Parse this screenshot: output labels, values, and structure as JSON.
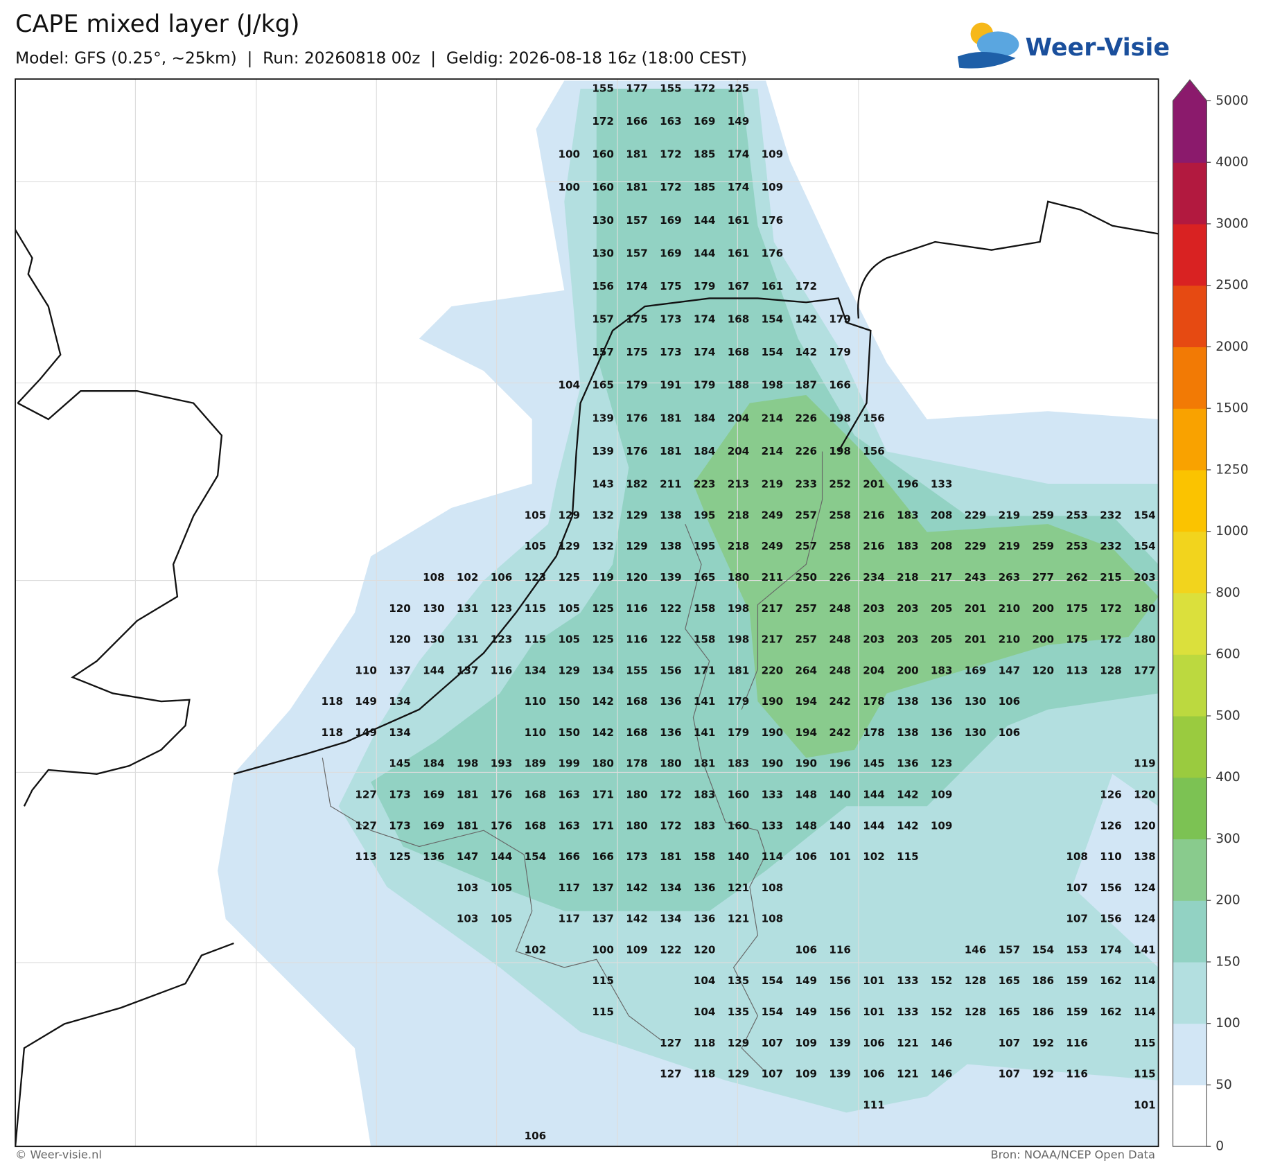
{
  "header": {
    "title": "CAPE mixed layer (J/kg)",
    "subtitle": "Model: GFS (0.25°, ~25km)  |  Run: 20260818 00z  |  Geldig: 2026-08-18 16z (18:00 CEST)",
    "logo": "Weer-Visie"
  },
  "map": {
    "rows": [
      [
        null,
        null,
        null,
        null,
        null,
        null,
        null,
        null,
        155,
        177,
        155,
        172,
        125,
        null,
        null,
        null,
        null,
        null,
        null,
        null,
        null,
        null,
        null,
        null,
        null
      ],
      [
        null,
        null,
        null,
        null,
        null,
        null,
        null,
        null,
        172,
        166,
        163,
        169,
        149,
        null,
        null,
        null,
        null,
        null,
        null,
        null,
        null,
        null,
        null,
        null,
        null
      ],
      [
        null,
        null,
        null,
        null,
        null,
        null,
        null,
        100,
        160,
        181,
        172,
        185,
        174,
        109,
        null,
        null,
        null,
        null,
        null,
        null,
        null,
        null,
        null,
        null,
        null
      ],
      [
        null,
        null,
        null,
        null,
        null,
        null,
        null,
        100,
        160,
        181,
        172,
        185,
        174,
        109,
        null,
        null,
        null,
        null,
        null,
        null,
        null,
        null,
        null,
        null,
        null
      ],
      [
        null,
        null,
        null,
        null,
        null,
        null,
        null,
        null,
        130,
        157,
        169,
        144,
        161,
        176,
        null,
        null,
        null,
        null,
        null,
        null,
        null,
        null,
        null,
        null,
        null
      ],
      [
        null,
        null,
        null,
        null,
        null,
        null,
        null,
        null,
        130,
        157,
        169,
        144,
        161,
        176,
        null,
        null,
        null,
        null,
        null,
        null,
        null,
        null,
        null,
        null,
        null
      ],
      [
        null,
        null,
        null,
        null,
        null,
        null,
        null,
        null,
        156,
        174,
        175,
        179,
        167,
        161,
        172,
        null,
        null,
        null,
        null,
        null,
        null,
        null,
        null,
        null,
        null
      ],
      [
        null,
        null,
        null,
        null,
        null,
        null,
        null,
        null,
        157,
        175,
        173,
        174,
        168,
        154,
        142,
        179,
        null,
        null,
        null,
        null,
        null,
        null,
        null,
        null,
        null
      ],
      [
        null,
        null,
        null,
        null,
        null,
        null,
        null,
        null,
        157,
        175,
        173,
        174,
        168,
        154,
        142,
        179,
        null,
        null,
        null,
        null,
        null,
        null,
        null,
        null,
        null
      ],
      [
        null,
        null,
        null,
        null,
        null,
        null,
        null,
        104,
        165,
        179,
        191,
        179,
        188,
        198,
        187,
        166,
        null,
        null,
        null,
        null,
        null,
        null,
        null,
        null,
        null
      ],
      [
        null,
        null,
        null,
        null,
        null,
        null,
        null,
        null,
        139,
        176,
        181,
        184,
        204,
        214,
        226,
        198,
        156,
        null,
        null,
        null,
        null,
        null,
        null,
        null,
        null
      ],
      [
        null,
        null,
        null,
        null,
        null,
        null,
        null,
        null,
        139,
        176,
        181,
        184,
        204,
        214,
        226,
        198,
        156,
        null,
        null,
        null,
        null,
        null,
        null,
        null,
        null
      ],
      [
        null,
        null,
        null,
        null,
        null,
        null,
        null,
        null,
        143,
        182,
        211,
        223,
        213,
        219,
        233,
        252,
        201,
        196,
        133,
        null,
        null,
        null,
        null,
        null,
        null
      ],
      [
        null,
        null,
        null,
        null,
        null,
        null,
        105,
        129,
        132,
        129,
        138,
        195,
        218,
        249,
        257,
        258,
        216,
        183,
        208,
        229,
        219,
        259,
        253,
        232,
        154
      ],
      [
        null,
        null,
        null,
        null,
        null,
        null,
        105,
        129,
        132,
        129,
        138,
        195,
        218,
        249,
        257,
        258,
        216,
        183,
        208,
        229,
        219,
        259,
        253,
        232,
        154
      ],
      [
        null,
        null,
        null,
        108,
        102,
        106,
        123,
        125,
        119,
        120,
        139,
        165,
        180,
        211,
        250,
        226,
        234,
        218,
        217,
        243,
        263,
        277,
        262,
        215,
        203
      ],
      [
        null,
        null,
        120,
        130,
        131,
        123,
        115,
        105,
        125,
        116,
        122,
        158,
        198,
        217,
        257,
        248,
        203,
        203,
        205,
        201,
        210,
        200,
        175,
        172,
        180
      ],
      [
        null,
        null,
        120,
        130,
        131,
        123,
        115,
        105,
        125,
        116,
        122,
        158,
        198,
        217,
        257,
        248,
        203,
        203,
        205,
        201,
        210,
        200,
        175,
        172,
        180
      ],
      [
        null,
        110,
        137,
        144,
        137,
        116,
        134,
        129,
        134,
        155,
        156,
        171,
        181,
        220,
        264,
        248,
        204,
        200,
        183,
        169,
        147,
        120,
        113,
        128,
        177
      ],
      [
        118,
        149,
        134,
        null,
        null,
        null,
        110,
        150,
        142,
        168,
        136,
        141,
        179,
        190,
        194,
        242,
        178,
        138,
        136,
        130,
        106,
        null,
        null,
        null,
        null
      ],
      [
        118,
        149,
        134,
        null,
        null,
        null,
        110,
        150,
        142,
        168,
        136,
        141,
        179,
        190,
        194,
        242,
        178,
        138,
        136,
        130,
        106,
        null,
        null,
        null,
        null
      ],
      [
        null,
        null,
        145,
        184,
        198,
        193,
        189,
        199,
        180,
        178,
        180,
        181,
        183,
        190,
        190,
        196,
        145,
        136,
        123,
        null,
        null,
        null,
        null,
        null,
        119
      ],
      [
        null,
        127,
        173,
        169,
        181,
        176,
        168,
        163,
        171,
        180,
        172,
        183,
        160,
        133,
        148,
        140,
        144,
        142,
        109,
        null,
        null,
        null,
        null,
        126,
        120
      ],
      [
        null,
        127,
        173,
        169,
        181,
        176,
        168,
        163,
        171,
        180,
        172,
        183,
        160,
        133,
        148,
        140,
        144,
        142,
        109,
        null,
        null,
        null,
        null,
        126,
        120
      ],
      [
        null,
        113,
        125,
        136,
        147,
        144,
        154,
        166,
        166,
        173,
        181,
        158,
        140,
        114,
        106,
        101,
        102,
        115,
        null,
        null,
        null,
        null,
        108,
        110,
        138
      ],
      [
        null,
        null,
        null,
        null,
        103,
        105,
        null,
        117,
        137,
        142,
        134,
        136,
        121,
        108,
        null,
        null,
        null,
        null,
        null,
        null,
        null,
        null,
        107,
        156,
        124
      ],
      [
        null,
        null,
        null,
        null,
        103,
        105,
        null,
        117,
        137,
        142,
        134,
        136,
        121,
        108,
        null,
        null,
        null,
        null,
        null,
        null,
        null,
        null,
        107,
        156,
        124
      ],
      [
        null,
        null,
        null,
        null,
        null,
        null,
        102,
        null,
        100,
        109,
        122,
        120,
        null,
        null,
        106,
        116,
        null,
        null,
        null,
        146,
        157,
        154,
        153,
        174,
        141
      ],
      [
        null,
        null,
        null,
        null,
        null,
        null,
        null,
        null,
        115,
        null,
        null,
        104,
        135,
        154,
        149,
        156,
        101,
        133,
        152,
        128,
        165,
        186,
        159,
        162,
        114
      ],
      [
        null,
        null,
        null,
        null,
        null,
        null,
        null,
        null,
        115,
        null,
        null,
        104,
        135,
        154,
        149,
        156,
        101,
        133,
        152,
        128,
        165,
        186,
        159,
        162,
        114
      ],
      [
        null,
        null,
        null,
        null,
        null,
        null,
        null,
        null,
        null,
        null,
        127,
        118,
        129,
        107,
        109,
        139,
        106,
        121,
        146,
        null,
        107,
        192,
        116,
        null,
        115
      ],
      [
        null,
        null,
        null,
        null,
        null,
        null,
        null,
        null,
        null,
        null,
        127,
        118,
        129,
        107,
        109,
        139,
        106,
        121,
        146,
        null,
        107,
        192,
        116,
        null,
        115
      ],
      [
        null,
        null,
        null,
        null,
        null,
        null,
        null,
        null,
        null,
        null,
        null,
        null,
        null,
        null,
        null,
        null,
        111,
        null,
        null,
        null,
        null,
        null,
        null,
        null,
        101
      ],
      [
        null,
        null,
        null,
        null,
        null,
        null,
        106,
        null,
        null,
        null,
        null,
        null,
        null,
        null,
        null,
        null,
        null,
        null,
        null,
        null,
        null,
        null,
        null,
        null,
        null
      ]
    ]
  },
  "colorbar": {
    "ticks": [
      0,
      50,
      100,
      150,
      200,
      300,
      400,
      500,
      600,
      800,
      1000,
      1250,
      1500,
      2000,
      2500,
      3000,
      4000,
      5000
    ],
    "colors": [
      "#ffffff",
      "#d2e6f5",
      "#b3dfe0",
      "#92d2c3",
      "#89cb8d",
      "#7cc253",
      "#9acb3f",
      "#bcd93f",
      "#dbe03c",
      "#f2d41d",
      "#fbc300",
      "#f9a200",
      "#f27a05",
      "#e64a12",
      "#d92222",
      "#b2193f",
      "#8b1a6c"
    ]
  },
  "footer": {
    "credit": "© Weer-visie.nl",
    "source": "Bron: NOAA/NCEP Open Data"
  }
}
